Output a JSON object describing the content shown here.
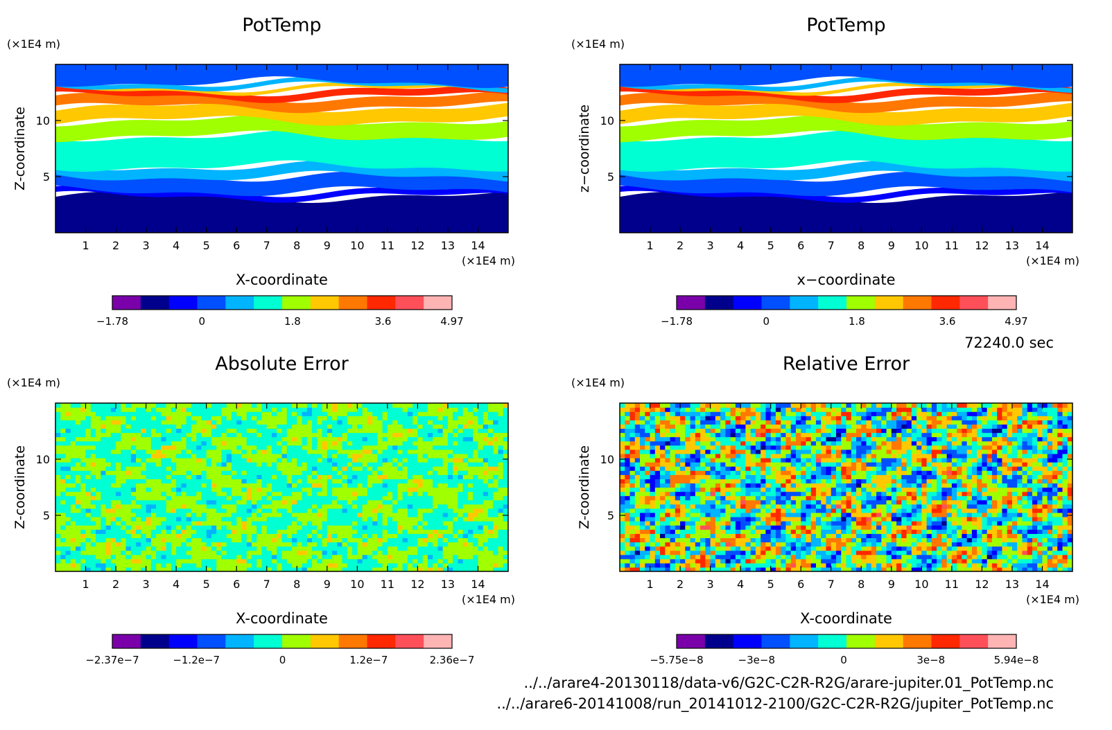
{
  "palette": [
    "#7a00aa",
    "#00008c",
    "#0000ff",
    "#0050ff",
    "#00b4ff",
    "#00ffd2",
    "#a0ff00",
    "#ffc800",
    "#ff7800",
    "#ff2800",
    "#ff505a",
    "#ffb4b4"
  ],
  "time_label": "72240.0 sec",
  "files": [
    "../../arare4-20130118/data-v6/G2C-C2R-R2G/arare-jupiter.01_PotTemp.nc",
    "../../arare6-20141008/run_20141012-2100/G2C-C2R-R2G/jupiter_PotTemp.nc"
  ],
  "chart_data": [
    {
      "type": "heatmap",
      "title": "PotTemp",
      "xlabel": "X-coordinate",
      "ylabel": "Z-coordinate",
      "x_unit": "(×1E4 m)",
      "y_unit": "(×1E4 m)",
      "xlim": [
        0,
        15
      ],
      "ylim": [
        0,
        15
      ],
      "x_ticks": [
        1,
        2,
        3,
        4,
        5,
        6,
        7,
        8,
        9,
        10,
        11,
        12,
        13,
        14
      ],
      "y_ticks": [
        5,
        10
      ],
      "colorbar": {
        "min": -1.78,
        "max": 4.97,
        "ticks": [
          "−1.78",
          "0",
          "1.8",
          "3.6",
          "4.97"
        ],
        "tick_values": [
          -1.78,
          0,
          1.8,
          3.6,
          4.97
        ]
      },
      "field": "layered",
      "bands": [
        {
          "z0": 0,
          "z1": 3.2,
          "level": 1
        },
        {
          "z0": 3.2,
          "z1": 3.7,
          "level": 2
        },
        {
          "z0": 3.7,
          "z1": 5.0,
          "level": 3
        },
        {
          "z0": 5.0,
          "z1": 5.9,
          "level": 4
        },
        {
          "z0": 5.9,
          "z1": 8.6,
          "level": 5
        },
        {
          "z0": 8.6,
          "z1": 10.0,
          "level": 6
        },
        {
          "z0": 10.0,
          "z1": 11.2,
          "level": 7
        },
        {
          "z0": 11.2,
          "z1": 12.1,
          "level": 8
        },
        {
          "z0": 12.1,
          "z1": 12.7,
          "level": 9
        },
        {
          "z0": 12.7,
          "z1": 13.0,
          "level": 7
        },
        {
          "z0": 13.0,
          "z1": 13.4,
          "level": 4
        },
        {
          "z0": 13.4,
          "z1": 15.0,
          "level": 3
        }
      ]
    },
    {
      "type": "heatmap",
      "title": "PotTemp",
      "xlabel": "x−coordinate",
      "ylabel": "z−coordinate",
      "x_unit": "(×1E4 m)",
      "y_unit": "(×1E4 m)",
      "xlim": [
        0,
        15
      ],
      "ylim": [
        0,
        15
      ],
      "x_ticks": [
        1,
        2,
        3,
        4,
        5,
        6,
        7,
        8,
        9,
        10,
        11,
        12,
        13,
        14
      ],
      "y_ticks": [
        5,
        10
      ],
      "colorbar": {
        "min": -1.78,
        "max": 4.97,
        "ticks": [
          "−1.78",
          "0",
          "1.8",
          "3.6",
          "4.97"
        ],
        "tick_values": [
          -1.78,
          0,
          1.8,
          3.6,
          4.97
        ]
      },
      "field": "layered",
      "bands": [
        {
          "z0": 0,
          "z1": 3.2,
          "level": 1
        },
        {
          "z0": 3.2,
          "z1": 3.7,
          "level": 2
        },
        {
          "z0": 3.7,
          "z1": 5.0,
          "level": 3
        },
        {
          "z0": 5.0,
          "z1": 5.9,
          "level": 4
        },
        {
          "z0": 5.9,
          "z1": 8.6,
          "level": 5
        },
        {
          "z0": 8.6,
          "z1": 10.0,
          "level": 6
        },
        {
          "z0": 10.0,
          "z1": 11.2,
          "level": 7
        },
        {
          "z0": 11.2,
          "z1": 12.1,
          "level": 8
        },
        {
          "z0": 12.1,
          "z1": 12.7,
          "level": 9
        },
        {
          "z0": 12.7,
          "z1": 13.0,
          "level": 7
        },
        {
          "z0": 13.0,
          "z1": 13.4,
          "level": 4
        },
        {
          "z0": 13.4,
          "z1": 15.0,
          "level": 3
        }
      ]
    },
    {
      "type": "heatmap",
      "title": "Absolute Error",
      "xlabel": "X-coordinate",
      "ylabel": "Z-coordinate",
      "x_unit": "(×1E4 m)",
      "y_unit": "(×1E4 m)",
      "xlim": [
        0,
        15
      ],
      "ylim": [
        0,
        15
      ],
      "x_ticks": [
        1,
        2,
        3,
        4,
        5,
        6,
        7,
        8,
        9,
        10,
        11,
        12,
        13,
        14
      ],
      "y_ticks": [
        5,
        10
      ],
      "colorbar": {
        "min": -2.37e-07,
        "max": 2.36e-07,
        "ticks": [
          "−2.37e−7",
          "−1.2e−7",
          "0",
          "1.2e−7",
          "2.36e−7"
        ],
        "tick_values": [
          -2.37e-07,
          -1.2e-07,
          0,
          1.2e-07,
          2.36e-07
        ]
      },
      "field": "noise_low",
      "noise_amplitude": 1.0,
      "noise_center_level": 5.5
    },
    {
      "type": "heatmap",
      "title": "Relative Error",
      "xlabel": "X-coordinate",
      "ylabel": "Z-coordinate",
      "x_unit": "(×1E4 m)",
      "y_unit": "(×1E4 m)",
      "xlim": [
        0,
        15
      ],
      "ylim": [
        0,
        15
      ],
      "x_ticks": [
        1,
        2,
        3,
        4,
        5,
        6,
        7,
        8,
        9,
        10,
        11,
        12,
        13,
        14
      ],
      "y_ticks": [
        5,
        10
      ],
      "colorbar": {
        "min": -5.75e-08,
        "max": 5.94e-08,
        "ticks": [
          "−5.75e−8",
          "−3e−8",
          "0",
          "3e−8",
          "5.94e−8"
        ],
        "tick_values": [
          -5.75e-08,
          -3e-08,
          0,
          3e-08,
          5.94e-08
        ]
      },
      "field": "noise_high",
      "noise_amplitude": 3.2,
      "noise_center_level": 5.5
    }
  ]
}
